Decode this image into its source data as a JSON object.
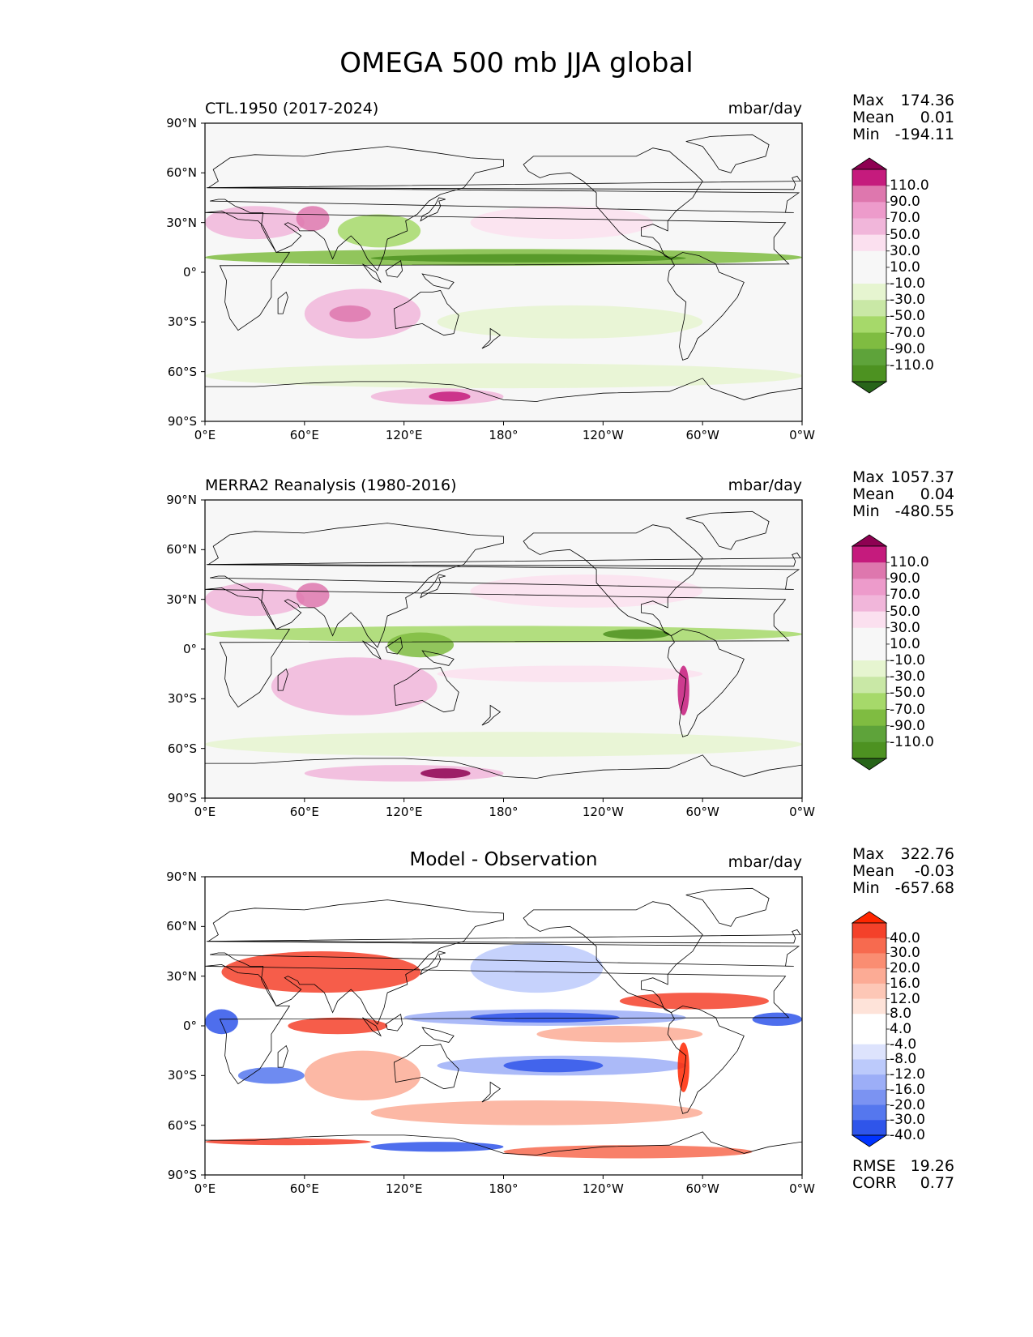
{
  "figure": {
    "title": "OMEGA 500 mb JJA global"
  },
  "axes": {
    "lat_ticks": [
      "90°N",
      "60°N",
      "30°N",
      "0°",
      "30°S",
      "60°S",
      "90°S"
    ],
    "lon_ticks": [
      "0°E",
      "60°E",
      "120°E",
      "180°",
      "120°W",
      "60°W",
      "0°W"
    ]
  },
  "panels": [
    {
      "id": "model",
      "left_title": "CTL.1950 (2017-2024)",
      "center_title": "",
      "units": "mbar/day",
      "stats": [
        {
          "label": "Max",
          "value": "174.36"
        },
        {
          "label": "Mean",
          "value": "0.01"
        },
        {
          "label": "Min",
          "value": "-194.11"
        }
      ],
      "colorbar": {
        "labels": [
          "110.0",
          "90.0",
          "70.0",
          "50.0",
          "30.0",
          "10.0",
          "-10.0",
          "-30.0",
          "-50.0",
          "-70.0",
          "-90.0",
          "-110.0"
        ],
        "colors": [
          "#8e0152",
          "#c51b7d",
          "#de77ae",
          "#ed9bcb",
          "#f1b6da",
          "#fbe0ef",
          "#f7f7f7",
          "#f7f7f7",
          "#e6f5d0",
          "#c9e8a6",
          "#a6d96a",
          "#7fbc41",
          "#5ea33a",
          "#4d9221",
          "#276419"
        ]
      },
      "extra_stats": []
    },
    {
      "id": "obs",
      "left_title": "MERRA2 Reanalysis (1980-2016)",
      "center_title": "",
      "units": "mbar/day",
      "stats": [
        {
          "label": "Max",
          "value": "1057.37"
        },
        {
          "label": "Mean",
          "value": "0.04"
        },
        {
          "label": "Min",
          "value": "-480.55"
        }
      ],
      "colorbar": {
        "labels": [
          "110.0",
          "90.0",
          "70.0",
          "50.0",
          "30.0",
          "10.0",
          "-10.0",
          "-30.0",
          "-50.0",
          "-70.0",
          "-90.0",
          "-110.0"
        ],
        "colors": [
          "#8e0152",
          "#c51b7d",
          "#de77ae",
          "#ed9bcb",
          "#f1b6da",
          "#fbe0ef",
          "#f7f7f7",
          "#f7f7f7",
          "#e6f5d0",
          "#c9e8a6",
          "#a6d96a",
          "#7fbc41",
          "#5ea33a",
          "#4d9221",
          "#276419"
        ]
      },
      "extra_stats": []
    },
    {
      "id": "diff",
      "left_title": "",
      "center_title": "Model - Observation",
      "units": "mbar/day",
      "stats": [
        {
          "label": "Max",
          "value": "322.76"
        },
        {
          "label": "Mean",
          "value": "-0.03"
        },
        {
          "label": "Min",
          "value": "-657.68"
        }
      ],
      "colorbar": {
        "labels": [
          "40.0",
          "30.0",
          "20.0",
          "16.0",
          "12.0",
          "8.0",
          "4.0",
          "-4.0",
          "-8.0",
          "-12.0",
          "-16.0",
          "-20.0",
          "-30.0",
          "-40.0"
        ],
        "colors": [
          "#ff2600",
          "#f4412a",
          "#f76a4f",
          "#fa8d72",
          "#fcab95",
          "#fdc7b6",
          "#fee3d9",
          "#ffffff",
          "#ffffff",
          "#dde3fd",
          "#bccafb",
          "#9caef7",
          "#7b93f2",
          "#5577ee",
          "#2f55ea",
          "#0033ff"
        ]
      },
      "extra_stats": [
        {
          "label": "RMSE",
          "value": "19.26"
        },
        {
          "label": "CORR",
          "value": "0.77"
        }
      ]
    }
  ]
}
